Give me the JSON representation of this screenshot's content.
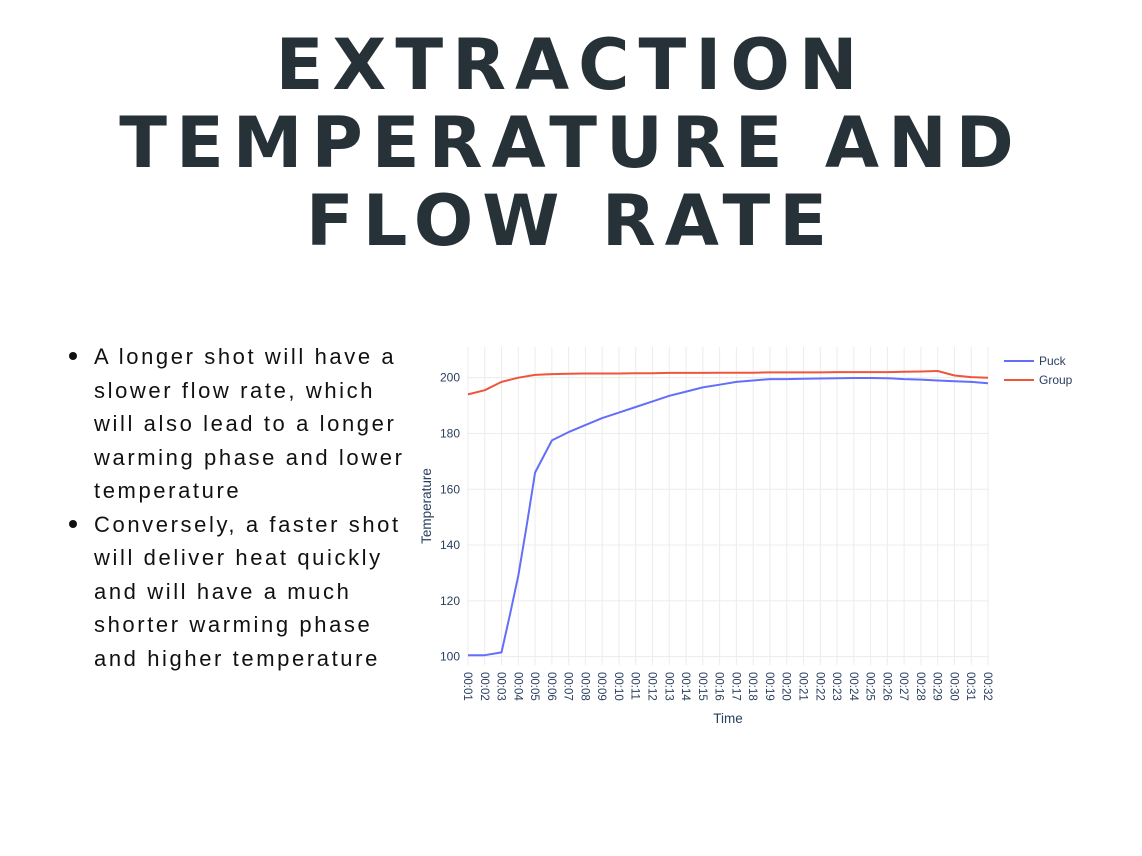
{
  "title": {
    "lines": [
      "EXTRACTION",
      "TEMPERATURE AND",
      "FLOW RATE"
    ]
  },
  "bullets": [
    "A longer shot will have a slower flow rate, which will also lead to a longer warming phase and lower temperature",
    "Conversely, a faster shot will deliver heat quickly and will have a much shorter warming phase and higher temperature"
  ],
  "chart_data": {
    "type": "line",
    "xlabel": "Time",
    "ylabel": "Temperature",
    "x": [
      "00:01",
      "00:02",
      "00:03",
      "00:04",
      "00:05",
      "00:06",
      "00:07",
      "00:08",
      "00:09",
      "00:10",
      "00:11",
      "00:12",
      "00:13",
      "00:14",
      "00:15",
      "00:16",
      "00:17",
      "00:18",
      "00:19",
      "00:20",
      "00:21",
      "00:22",
      "00:23",
      "00:24",
      "00:25",
      "00:26",
      "00:27",
      "00:28",
      "00:29",
      "00:30",
      "00:31",
      "00:32"
    ],
    "ylim": [
      97,
      211
    ],
    "yticks": [
      100,
      120,
      140,
      160,
      180,
      200
    ],
    "grid": true,
    "legend": "top-right",
    "series": [
      {
        "name": "Puck",
        "color": "#636efa",
        "x": [
          "00:01",
          "00:02",
          "00:03",
          "00:03.5",
          "00:04",
          "00:04.5",
          "00:05",
          "00:06",
          "00:07",
          "00:08",
          "00:09",
          "00:10",
          "00:11",
          "00:12",
          "00:13",
          "00:14",
          "00:15",
          "00:16",
          "00:17",
          "00:18",
          "00:19",
          "00:20",
          "00:21",
          "00:22",
          "00:23",
          "00:24",
          "00:25",
          "00:26",
          "00:27",
          "00:28",
          "00:29",
          "00:30",
          "00:31",
          "00:32"
        ],
        "values": [
          100.5,
          100.5,
          101.5,
          115,
          129,
          147,
          166,
          177.5,
          180.5,
          183,
          185.5,
          187.5,
          189.5,
          191.5,
          193.5,
          195,
          196.5,
          197.5,
          198.5,
          199,
          199.5,
          199.5,
          199.6,
          199.7,
          199.8,
          199.9,
          199.9,
          199.8,
          199.5,
          199.3,
          199,
          198.7,
          198.5,
          198
        ]
      },
      {
        "name": "Group",
        "color": "#ef553b",
        "x": [
          "00:01",
          "00:02",
          "00:03",
          "00:04",
          "00:05",
          "00:06",
          "00:07",
          "00:08",
          "00:09",
          "00:10",
          "00:11",
          "00:12",
          "00:13",
          "00:14",
          "00:15",
          "00:16",
          "00:17",
          "00:18",
          "00:19",
          "00:20",
          "00:21",
          "00:22",
          "00:23",
          "00:24",
          "00:25",
          "00:26",
          "00:27",
          "00:28",
          "00:29",
          "00:30",
          "00:31",
          "00:32"
        ],
        "values": [
          194,
          195.5,
          198.5,
          200,
          201,
          201.3,
          201.4,
          201.5,
          201.5,
          201.5,
          201.6,
          201.6,
          201.7,
          201.7,
          201.7,
          201.8,
          201.8,
          201.8,
          201.9,
          201.9,
          201.9,
          201.9,
          202,
          202,
          202,
          202,
          202.1,
          202.2,
          202.4,
          200.8,
          200.2,
          200
        ]
      }
    ]
  }
}
